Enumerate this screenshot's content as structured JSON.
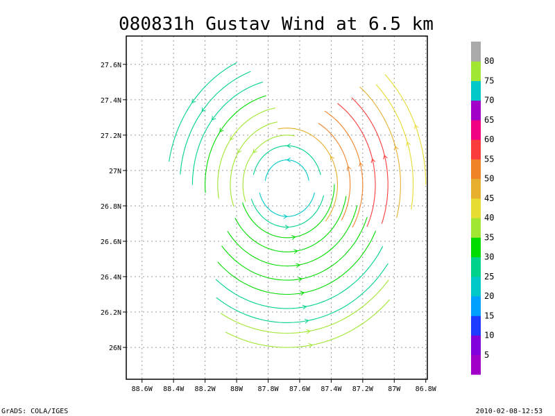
{
  "figure": {
    "title": "080831h Gustav Wind at 6.5 km",
    "footer_left": "GrADS: COLA/IGES",
    "footer_right": "2010-02-08-12:53"
  },
  "chart_data": {
    "type": "streamline",
    "title": "080831h Gustav Wind at 6.5 km",
    "xlabel": "",
    "ylabel": "",
    "xlim": [
      -88.7,
      -86.79
    ],
    "ylim": [
      25.82,
      27.76
    ],
    "xticks": [
      -88.6,
      -88.4,
      -88.2,
      -88.0,
      -87.8,
      -87.6,
      -87.4,
      -87.2,
      -87.0,
      -86.8
    ],
    "xtick_labels": [
      "88.6W",
      "88.4W",
      "88.2W",
      "88W",
      "87.8W",
      "87.6W",
      "87.4W",
      "87.2W",
      "87W",
      "86.8W"
    ],
    "yticks": [
      26.0,
      26.2,
      26.4,
      26.6,
      26.8,
      27.0,
      27.2,
      27.4,
      27.6
    ],
    "ytick_labels": [
      "26N",
      "26.2N",
      "26.4N",
      "26.6N",
      "26.8N",
      "27N",
      "27.2N",
      "27.4N",
      "27.6N"
    ],
    "grid": true,
    "storm_center": [
      -87.68,
      26.92
    ],
    "rotation": "counterclockwise",
    "streamlines": [
      {
        "radius_deg": 0.14,
        "from_angle": 10,
        "to_angle": 170,
        "speed": 20
      },
      {
        "radius_deg": 0.18,
        "from_angle": 195,
        "to_angle": 345,
        "speed": 20
      },
      {
        "radius_deg": 0.22,
        "from_angle": 15,
        "to_angle": 165,
        "speed": 25
      },
      {
        "radius_deg": 0.24,
        "from_angle": 200,
        "to_angle": 345,
        "speed": 25
      },
      {
        "radius_deg": 0.28,
        "from_angle": 80,
        "to_angle": 200,
        "speed": 35
      },
      {
        "radius_deg": 0.3,
        "from_angle": 200,
        "to_angle": 360,
        "speed": 30
      },
      {
        "radius_deg": 0.32,
        "from_angle": -40,
        "to_angle": 100,
        "speed": 45
      },
      {
        "radius_deg": 0.36,
        "from_angle": 100,
        "to_angle": 200,
        "speed": 35
      },
      {
        "radius_deg": 0.38,
        "from_angle": 210,
        "to_angle": 350,
        "speed": 30
      },
      {
        "radius_deg": 0.4,
        "from_angle": -30,
        "to_angle": 60,
        "speed": 50
      },
      {
        "radius_deg": 0.44,
        "from_angle": 100,
        "to_angle": 190,
        "speed": 35
      },
      {
        "radius_deg": 0.46,
        "from_angle": 215,
        "to_angle": 345,
        "speed": 30
      },
      {
        "radius_deg": 0.48,
        "from_angle": -30,
        "to_angle": 60,
        "speed": 50
      },
      {
        "radius_deg": 0.52,
        "from_angle": 105,
        "to_angle": 185,
        "speed": 30
      },
      {
        "radius_deg": 0.54,
        "from_angle": 220,
        "to_angle": 340,
        "speed": 30
      },
      {
        "radius_deg": 0.56,
        "from_angle": -25,
        "to_angle": 55,
        "speed": 55
      },
      {
        "radius_deg": 0.6,
        "from_angle": 105,
        "to_angle": 180,
        "speed": 25
      },
      {
        "radius_deg": 0.62,
        "from_angle": 225,
        "to_angle": 335,
        "speed": 30
      },
      {
        "radius_deg": 0.64,
        "from_angle": -20,
        "to_angle": 50,
        "speed": 55
      },
      {
        "radius_deg": 0.68,
        "from_angle": 110,
        "to_angle": 175,
        "speed": 25
      },
      {
        "radius_deg": 0.7,
        "from_angle": 230,
        "to_angle": 330,
        "speed": 25
      },
      {
        "radius_deg": 0.72,
        "from_angle": -15,
        "to_angle": 50,
        "speed": 45
      },
      {
        "radius_deg": 0.76,
        "from_angle": 115,
        "to_angle": 170,
        "speed": 25
      },
      {
        "radius_deg": 0.78,
        "from_angle": 235,
        "to_angle": 325,
        "speed": 25
      },
      {
        "radius_deg": 0.8,
        "from_angle": -10,
        "to_angle": 45,
        "speed": 40
      },
      {
        "radius_deg": 0.84,
        "from_angle": 240,
        "to_angle": 320,
        "speed": 35
      },
      {
        "radius_deg": 0.88,
        "from_angle": 0,
        "to_angle": 45,
        "speed": 40
      },
      {
        "radius_deg": 0.92,
        "from_angle": 245,
        "to_angle": 315,
        "speed": 35
      }
    ],
    "colorbar": {
      "labels": [
        "5",
        "10",
        "15",
        "20",
        "25",
        "30",
        "35",
        "40",
        "45",
        "50",
        "55",
        "60",
        "65",
        "70",
        "75",
        "80"
      ],
      "colors": [
        "#a000c8",
        "#8200dc",
        "#1e3cff",
        "#00a0ff",
        "#00c8c8",
        "#00d28c",
        "#00dc00",
        "#a0e632",
        "#e6dc32",
        "#e6af2d",
        "#f08228",
        "#fa3c3c",
        "#f00082",
        "#a000c8",
        "#00c8c8",
        "#a0e632",
        "#aaaaaa"
      ]
    }
  }
}
